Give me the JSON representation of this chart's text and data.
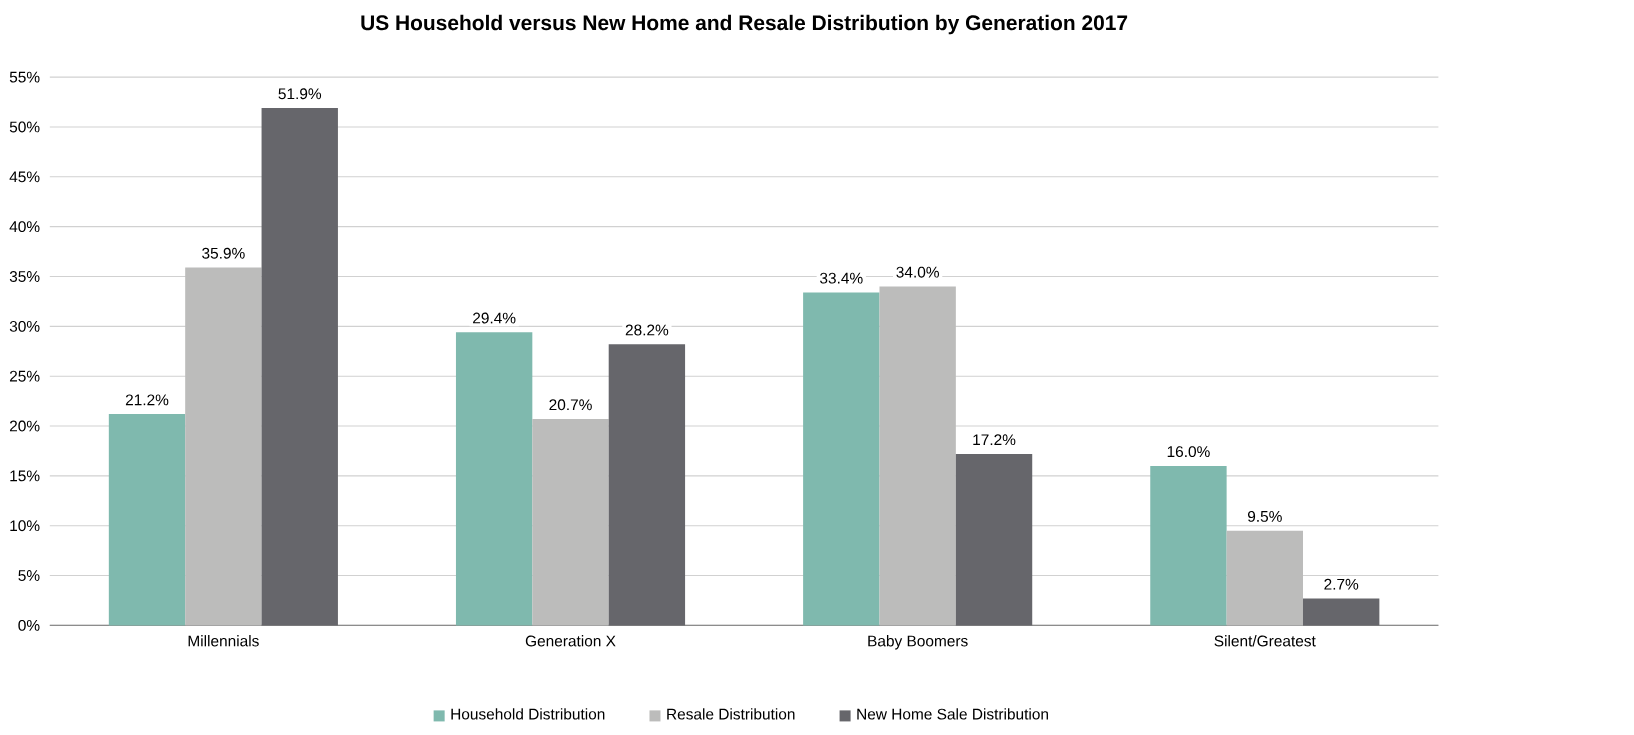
{
  "chart_data": {
    "type": "bar",
    "title": "US Household versus New Home and Resale Distribution by Generation 2017",
    "categories": [
      "Millennials",
      "Generation X",
      "Baby Boomers",
      "Silent/Greatest"
    ],
    "series": [
      {
        "name": "Household Distribution",
        "color": "#7fb9ae",
        "values": [
          21.2,
          29.4,
          33.4,
          16.0
        ],
        "value_labels": [
          "21.2%",
          "29.4%",
          "33.4%",
          "16.0%"
        ]
      },
      {
        "name": "Resale Distribution",
        "color": "#bcbcbb",
        "values": [
          35.9,
          20.7,
          34.0,
          9.5
        ],
        "value_labels": [
          "35.9%",
          "20.7%",
          "34.0%",
          "9.5%"
        ]
      },
      {
        "name": "New Home Sale Distribution",
        "color": "#66666b",
        "values": [
          51.9,
          28.2,
          17.2,
          2.7
        ],
        "value_labels": [
          "51.9%",
          "28.2%",
          "17.2%",
          "2.7%"
        ]
      }
    ],
    "ylim": [
      0,
      55
    ],
    "yticks": [
      {
        "value": 0,
        "label": "0%"
      },
      {
        "value": 5,
        "label": "5%"
      },
      {
        "value": 10,
        "label": "10%"
      },
      {
        "value": 15,
        "label": "15%"
      },
      {
        "value": 20,
        "label": "20%"
      },
      {
        "value": 25,
        "label": "25%"
      },
      {
        "value": 30,
        "label": "30%"
      },
      {
        "value": 35,
        "label": "35%"
      },
      {
        "value": 40,
        "label": "40%"
      },
      {
        "value": 45,
        "label": "45%"
      },
      {
        "value": 50,
        "label": "50%"
      },
      {
        "value": 55,
        "label": "55%"
      }
    ],
    "grid": "y",
    "legend": "bottom"
  }
}
